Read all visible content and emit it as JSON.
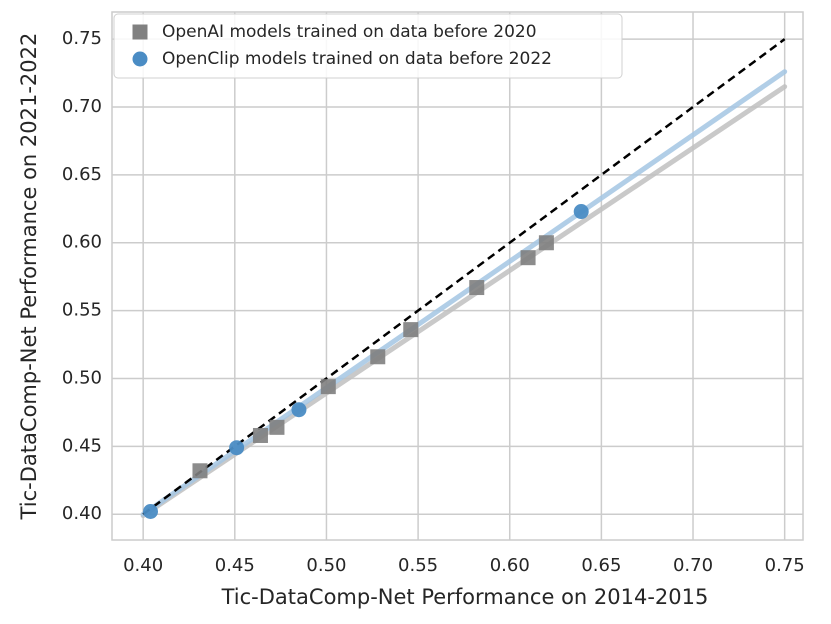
{
  "chart_data": {
    "type": "scatter",
    "xlabel": "Tic-DataComp-Net Performance on 2014-2015",
    "ylabel": "Tic-DataComp-Net Performance on 2021-2022",
    "xlim": [
      0.383,
      0.76
    ],
    "ylim": [
      0.381,
      0.77
    ],
    "xticks": [
      {
        "value": 0.4,
        "label": "0.40"
      },
      {
        "value": 0.45,
        "label": "0.45"
      },
      {
        "value": 0.5,
        "label": "0.50"
      },
      {
        "value": 0.55,
        "label": "0.55"
      },
      {
        "value": 0.6,
        "label": "0.60"
      },
      {
        "value": 0.65,
        "label": "0.65"
      },
      {
        "value": 0.7,
        "label": "0.70"
      },
      {
        "value": 0.75,
        "label": "0.75"
      }
    ],
    "yticks": [
      {
        "value": 0.4,
        "label": "0.40"
      },
      {
        "value": 0.45,
        "label": "0.45"
      },
      {
        "value": 0.5,
        "label": "0.50"
      },
      {
        "value": 0.55,
        "label": "0.55"
      },
      {
        "value": 0.6,
        "label": "0.60"
      },
      {
        "value": 0.65,
        "label": "0.65"
      },
      {
        "value": 0.7,
        "label": "0.70"
      },
      {
        "value": 0.75,
        "label": "0.75"
      }
    ],
    "grid": true,
    "legend": "upper left",
    "series": [
      {
        "name": "OpenAI models trained on data before 2020",
        "color": "#808080",
        "marker": "square",
        "x": [
          0.431,
          0.464,
          0.473,
          0.501,
          0.528,
          0.546,
          0.582,
          0.61,
          0.62
        ],
        "values": [
          0.432,
          0.458,
          0.464,
          0.494,
          0.516,
          0.536,
          0.567,
          0.589,
          0.6
        ]
      },
      {
        "name": "OpenClip models trained on data before 2022",
        "color": "#4a8cc4",
        "marker": "circle",
        "x": [
          0.404,
          0.451,
          0.485,
          0.639
        ],
        "values": [
          0.402,
          0.449,
          0.477,
          0.623
        ]
      }
    ],
    "fits": [
      {
        "color": "#bfbfbf",
        "x": [
          0.4,
          0.75
        ],
        "values": [
          0.399,
          0.715
        ]
      },
      {
        "color": "#a3c6e3",
        "x": [
          0.4,
          0.75
        ],
        "values": [
          0.4,
          0.726
        ]
      }
    ],
    "diagonal": {
      "color": "#000000",
      "x": [
        0.4,
        0.75
      ],
      "values": [
        0.4,
        0.75
      ]
    }
  }
}
